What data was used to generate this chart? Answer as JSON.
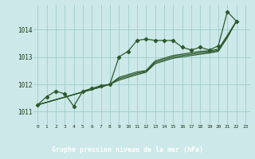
{
  "title": "Graphe pression niveau de la mer (hPa)",
  "bg_color": "#cce8e8",
  "plot_bg": "#cce8e8",
  "label_bg": "#4a7a4a",
  "label_fg": "#ffffff",
  "grid_color": "#a0cccc",
  "line_color": "#2d5a2d",
  "marker_color": "#2d5a2d",
  "xlim": [
    -0.5,
    23.5
  ],
  "ylim": [
    1010.55,
    1014.9
  ],
  "yticks": [
    1011,
    1012,
    1013,
    1014
  ],
  "xticks": [
    0,
    1,
    2,
    3,
    4,
    5,
    6,
    7,
    8,
    9,
    10,
    11,
    12,
    13,
    14,
    15,
    16,
    17,
    18,
    19,
    20,
    21,
    22,
    23
  ],
  "series_main": [
    [
      0,
      1011.25
    ],
    [
      1,
      1011.55
    ],
    [
      2,
      1011.75
    ],
    [
      3,
      1011.65
    ],
    [
      4,
      1011.2
    ],
    [
      5,
      1011.75
    ],
    [
      6,
      1011.85
    ],
    [
      7,
      1011.95
    ],
    [
      8,
      1012.0
    ],
    [
      9,
      1013.0
    ],
    [
      10,
      1013.2
    ],
    [
      11,
      1013.6
    ],
    [
      12,
      1013.65
    ],
    [
      13,
      1013.6
    ],
    [
      14,
      1013.6
    ],
    [
      15,
      1013.6
    ],
    [
      16,
      1013.35
    ],
    [
      17,
      1013.25
    ],
    [
      18,
      1013.35
    ],
    [
      19,
      1013.25
    ],
    [
      20,
      1013.4
    ],
    [
      21,
      1014.65
    ],
    [
      22,
      1014.3
    ]
  ],
  "series_line1": [
    [
      0,
      1011.25
    ],
    [
      8,
      1012.0
    ],
    [
      9,
      1012.25
    ],
    [
      10,
      1012.35
    ],
    [
      11,
      1012.45
    ],
    [
      12,
      1012.5
    ],
    [
      13,
      1012.85
    ],
    [
      14,
      1012.95
    ],
    [
      15,
      1013.05
    ],
    [
      16,
      1013.1
    ],
    [
      17,
      1013.15
    ],
    [
      18,
      1013.2
    ],
    [
      19,
      1013.22
    ],
    [
      20,
      1013.28
    ],
    [
      21,
      1013.78
    ],
    [
      22,
      1014.3
    ]
  ],
  "series_line2": [
    [
      0,
      1011.25
    ],
    [
      8,
      1012.0
    ],
    [
      9,
      1012.2
    ],
    [
      10,
      1012.3
    ],
    [
      11,
      1012.4
    ],
    [
      12,
      1012.47
    ],
    [
      13,
      1012.8
    ],
    [
      14,
      1012.9
    ],
    [
      15,
      1013.0
    ],
    [
      16,
      1013.05
    ],
    [
      17,
      1013.1
    ],
    [
      18,
      1013.15
    ],
    [
      19,
      1013.18
    ],
    [
      20,
      1013.24
    ],
    [
      21,
      1013.74
    ],
    [
      22,
      1014.3
    ]
  ],
  "series_line3": [
    [
      0,
      1011.25
    ],
    [
      8,
      1012.0
    ],
    [
      9,
      1012.15
    ],
    [
      10,
      1012.25
    ],
    [
      11,
      1012.35
    ],
    [
      12,
      1012.44
    ],
    [
      13,
      1012.75
    ],
    [
      14,
      1012.85
    ],
    [
      15,
      1012.95
    ],
    [
      16,
      1013.0
    ],
    [
      17,
      1013.05
    ],
    [
      18,
      1013.1
    ],
    [
      19,
      1013.14
    ],
    [
      20,
      1013.2
    ],
    [
      21,
      1013.7
    ],
    [
      22,
      1014.3
    ]
  ]
}
